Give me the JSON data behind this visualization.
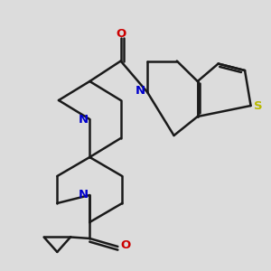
{
  "background_color": "#dcdcdc",
  "bond_color": "#1a1a1a",
  "bond_width": 1.8,
  "figsize": [
    3.0,
    3.0
  ],
  "dpi": 100,
  "xlim": [
    -1.0,
    11.0
  ],
  "ylim": [
    -0.5,
    10.5
  ]
}
